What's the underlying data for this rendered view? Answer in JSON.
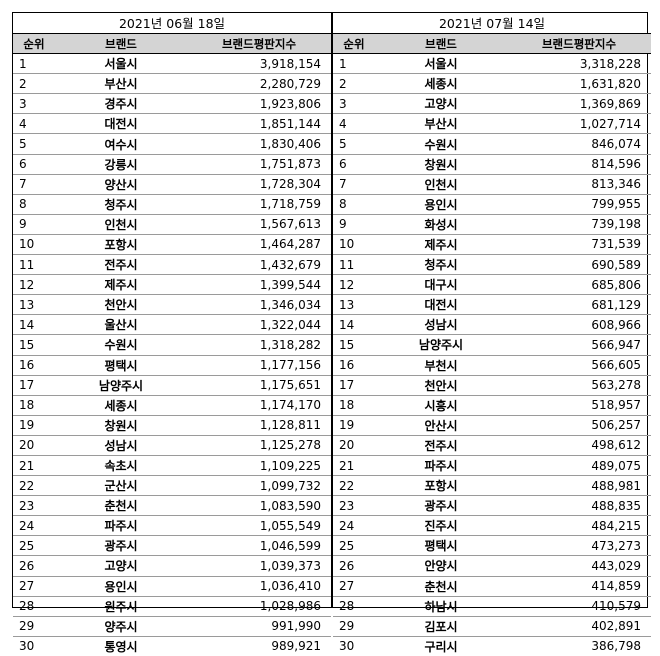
{
  "left": {
    "date": "2021년 06월 18일",
    "headers": [
      "순위",
      "브랜드",
      "브랜드평판지수"
    ],
    "rows": [
      {
        "rank": "1",
        "brand": "서울시",
        "index": "3,918,154"
      },
      {
        "rank": "2",
        "brand": "부산시",
        "index": "2,280,729"
      },
      {
        "rank": "3",
        "brand": "경주시",
        "index": "1,923,806"
      },
      {
        "rank": "4",
        "brand": "대전시",
        "index": "1,851,144"
      },
      {
        "rank": "5",
        "brand": "여수시",
        "index": "1,830,406"
      },
      {
        "rank": "6",
        "brand": "강릉시",
        "index": "1,751,873"
      },
      {
        "rank": "7",
        "brand": "양산시",
        "index": "1,728,304"
      },
      {
        "rank": "8",
        "brand": "청주시",
        "index": "1,718,759"
      },
      {
        "rank": "9",
        "brand": "인천시",
        "index": "1,567,613"
      },
      {
        "rank": "10",
        "brand": "포항시",
        "index": "1,464,287"
      },
      {
        "rank": "11",
        "brand": "전주시",
        "index": "1,432,679"
      },
      {
        "rank": "12",
        "brand": "제주시",
        "index": "1,399,544"
      },
      {
        "rank": "13",
        "brand": "천안시",
        "index": "1,346,034"
      },
      {
        "rank": "14",
        "brand": "울산시",
        "index": "1,322,044"
      },
      {
        "rank": "15",
        "brand": "수원시",
        "index": "1,318,282"
      },
      {
        "rank": "16",
        "brand": "평택시",
        "index": "1,177,156"
      },
      {
        "rank": "17",
        "brand": "남양주시",
        "index": "1,175,651"
      },
      {
        "rank": "18",
        "brand": "세종시",
        "index": "1,174,170"
      },
      {
        "rank": "19",
        "brand": "창원시",
        "index": "1,128,811"
      },
      {
        "rank": "20",
        "brand": "성남시",
        "index": "1,125,278"
      },
      {
        "rank": "21",
        "brand": "속초시",
        "index": "1,109,225"
      },
      {
        "rank": "22",
        "brand": "군산시",
        "index": "1,099,732"
      },
      {
        "rank": "23",
        "brand": "춘천시",
        "index": "1,083,590"
      },
      {
        "rank": "24",
        "brand": "파주시",
        "index": "1,055,549"
      },
      {
        "rank": "25",
        "brand": "광주시",
        "index": "1,046,599"
      },
      {
        "rank": "26",
        "brand": "고양시",
        "index": "1,039,373"
      },
      {
        "rank": "27",
        "brand": "용인시",
        "index": "1,036,410"
      },
      {
        "rank": "28",
        "brand": "원주시",
        "index": "1,028,986"
      },
      {
        "rank": "29",
        "brand": "양주시",
        "index": "991,990"
      },
      {
        "rank": "30",
        "brand": "통영시",
        "index": "989,921"
      }
    ]
  },
  "right": {
    "date": "2021년 07월 14일",
    "headers": [
      "순위",
      "브랜드",
      "브랜드평판지수"
    ],
    "rows": [
      {
        "rank": "1",
        "brand": "서울시",
        "index": "3,318,228"
      },
      {
        "rank": "2",
        "brand": "세종시",
        "index": "1,631,820"
      },
      {
        "rank": "3",
        "brand": "고양시",
        "index": "1,369,869"
      },
      {
        "rank": "4",
        "brand": "부산시",
        "index": "1,027,714"
      },
      {
        "rank": "5",
        "brand": "수원시",
        "index": "846,074"
      },
      {
        "rank": "6",
        "brand": "창원시",
        "index": "814,596"
      },
      {
        "rank": "7",
        "brand": "인천시",
        "index": "813,346"
      },
      {
        "rank": "8",
        "brand": "용인시",
        "index": "799,955"
      },
      {
        "rank": "9",
        "brand": "화성시",
        "index": "739,198"
      },
      {
        "rank": "10",
        "brand": "제주시",
        "index": "731,539"
      },
      {
        "rank": "11",
        "brand": "청주시",
        "index": "690,589"
      },
      {
        "rank": "12",
        "brand": "대구시",
        "index": "685,806"
      },
      {
        "rank": "13",
        "brand": "대전시",
        "index": "681,129"
      },
      {
        "rank": "14",
        "brand": "성남시",
        "index": "608,966"
      },
      {
        "rank": "15",
        "brand": "남양주시",
        "index": "566,947"
      },
      {
        "rank": "16",
        "brand": "부천시",
        "index": "566,605"
      },
      {
        "rank": "17",
        "brand": "천안시",
        "index": "563,278"
      },
      {
        "rank": "18",
        "brand": "시흥시",
        "index": "518,957"
      },
      {
        "rank": "19",
        "brand": "안산시",
        "index": "506,257"
      },
      {
        "rank": "20",
        "brand": "전주시",
        "index": "498,612"
      },
      {
        "rank": "21",
        "brand": "파주시",
        "index": "489,075"
      },
      {
        "rank": "22",
        "brand": "포항시",
        "index": "488,981"
      },
      {
        "rank": "23",
        "brand": "광주시",
        "index": "488,835"
      },
      {
        "rank": "24",
        "brand": "진주시",
        "index": "484,215"
      },
      {
        "rank": "25",
        "brand": "평택시",
        "index": "473,273"
      },
      {
        "rank": "26",
        "brand": "안양시",
        "index": "443,029"
      },
      {
        "rank": "27",
        "brand": "춘천시",
        "index": "414,859"
      },
      {
        "rank": "28",
        "brand": "하남시",
        "index": "410,579"
      },
      {
        "rank": "29",
        "brand": "김포시",
        "index": "402,891"
      },
      {
        "rank": "30",
        "brand": "구리시",
        "index": "386,798"
      }
    ]
  }
}
